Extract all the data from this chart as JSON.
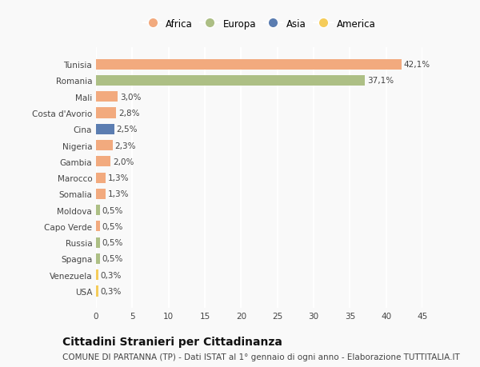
{
  "countries": [
    "Tunisia",
    "Romania",
    "Mali",
    "Costa d'Avorio",
    "Cina",
    "Nigeria",
    "Gambia",
    "Marocco",
    "Somalia",
    "Moldova",
    "Capo Verde",
    "Russia",
    "Spagna",
    "Venezuela",
    "USA"
  ],
  "values": [
    42.1,
    37.1,
    3.0,
    2.8,
    2.5,
    2.3,
    2.0,
    1.3,
    1.3,
    0.5,
    0.5,
    0.5,
    0.5,
    0.3,
    0.3
  ],
  "labels": [
    "42,1%",
    "37,1%",
    "3,0%",
    "2,8%",
    "2,5%",
    "2,3%",
    "2,0%",
    "1,3%",
    "1,3%",
    "0,5%",
    "0,5%",
    "0,5%",
    "0,5%",
    "0,3%",
    "0,3%"
  ],
  "continents": [
    "Africa",
    "Europa",
    "Africa",
    "Africa",
    "Asia",
    "Africa",
    "Africa",
    "Africa",
    "Africa",
    "Europa",
    "Africa",
    "Europa",
    "Europa",
    "America",
    "America"
  ],
  "colors": {
    "Africa": "#F2AA7E",
    "Europa": "#ADBF85",
    "Asia": "#5B7DB1",
    "America": "#F5CC5A"
  },
  "legend_order": [
    "Africa",
    "Europa",
    "Asia",
    "America"
  ],
  "legend_colors": [
    "#F2AA7E",
    "#ADBF85",
    "#5B7DB1",
    "#F5CC5A"
  ],
  "title": "Cittadini Stranieri per Cittadinanza",
  "subtitle": "COMUNE DI PARTANNA (TP) - Dati ISTAT al 1° gennaio di ogni anno - Elaborazione TUTTITALIA.IT",
  "xlim": [
    0,
    45
  ],
  "xticks": [
    0,
    5,
    10,
    15,
    20,
    25,
    30,
    35,
    40,
    45
  ],
  "background_color": "#f9f9f9",
  "grid_color": "#ffffff",
  "bar_height": 0.65,
  "title_fontsize": 10,
  "subtitle_fontsize": 7.5,
  "tick_fontsize": 7.5,
  "label_fontsize": 7.5,
  "legend_fontsize": 8.5
}
